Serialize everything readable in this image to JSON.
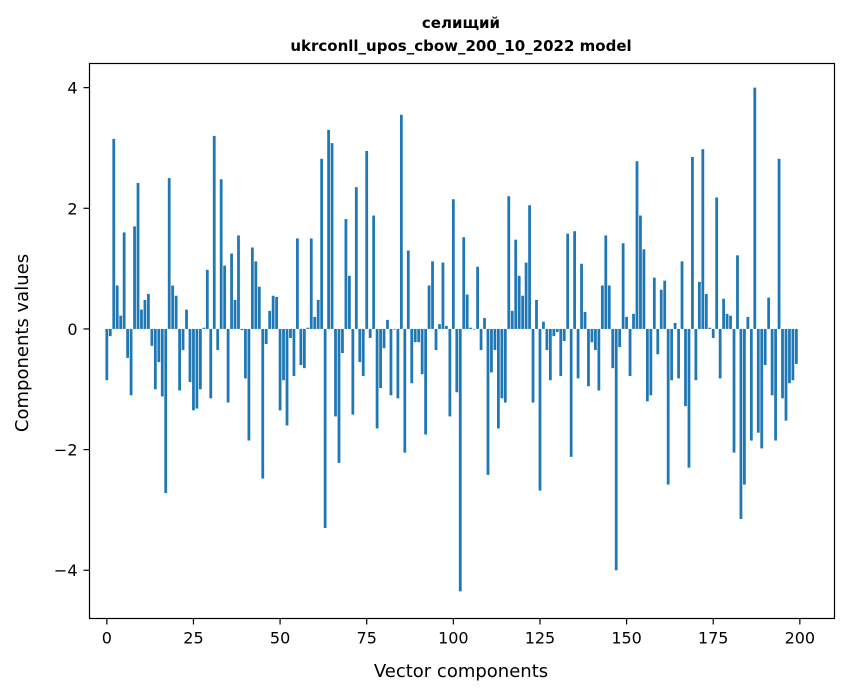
{
  "chart_data": {
    "type": "bar",
    "title_line1": "селищий",
    "title_line2": "ukrconll_upos_cbow_200_10_2022 model",
    "xlabel": "Vector components",
    "ylabel": "Components values",
    "xlim": [
      -5,
      210
    ],
    "ylim": [
      -4.8,
      4.4
    ],
    "xticks": [
      0,
      25,
      50,
      75,
      100,
      125,
      150,
      175,
      200
    ],
    "yticks": [
      -4,
      -2,
      0,
      2,
      4
    ],
    "ytick_labels": [
      "−4",
      "−2",
      "0",
      "2",
      "4"
    ],
    "bar_color": "#1f77b4",
    "grid": false,
    "values": [
      -0.85,
      -0.12,
      3.15,
      0.72,
      0.22,
      1.6,
      -0.48,
      -1.1,
      1.7,
      2.42,
      0.32,
      0.48,
      0.58,
      -0.28,
      -1.0,
      -0.55,
      -1.12,
      -2.72,
      2.5,
      0.72,
      0.55,
      -1.02,
      -0.35,
      0.32,
      -0.88,
      -1.35,
      -1.32,
      -1.0,
      0.02,
      0.98,
      -1.15,
      3.2,
      -0.35,
      2.48,
      1.05,
      -1.22,
      1.25,
      0.48,
      1.55,
      -0.02,
      -0.82,
      -1.85,
      1.35,
      1.12,
      0.7,
      -2.48,
      -0.25,
      0.3,
      0.55,
      0.53,
      -1.35,
      -0.85,
      -1.6,
      -0.15,
      -0.78,
      1.5,
      -0.6,
      -0.65,
      0.02,
      1.5,
      0.2,
      0.48,
      2.82,
      -3.3,
      3.3,
      3.08,
      -1.45,
      -2.22,
      -0.4,
      1.82,
      0.88,
      -1.42,
      2.35,
      -0.55,
      -0.78,
      2.95,
      -0.15,
      1.88,
      -1.65,
      -0.98,
      -0.32,
      0.15,
      -1.1,
      0.0,
      -1.15,
      3.55,
      -2.05,
      1.3,
      -0.9,
      -0.22,
      -0.22,
      -0.75,
      -1.75,
      0.72,
      1.12,
      -0.35,
      0.08,
      1.1,
      0.05,
      -1.45,
      2.15,
      -1.05,
      -4.35,
      1.52,
      0.57,
      0.02,
      0.0,
      1.03,
      -0.35,
      0.18,
      -2.42,
      -0.72,
      -0.35,
      -1.65,
      -1.15,
      -1.22,
      2.2,
      0.3,
      1.48,
      0.88,
      0.55,
      1.1,
      2.05,
      -1.22,
      0.48,
      -2.68,
      0.12,
      -0.35,
      -0.85,
      -0.12,
      -0.05,
      -0.78,
      -0.2,
      1.58,
      -2.12,
      1.62,
      -0.82,
      1.08,
      0.28,
      -0.95,
      -0.22,
      -0.35,
      -1.02,
      0.72,
      1.55,
      0.72,
      -0.65,
      -4.0,
      -0.3,
      1.42,
      0.2,
      -0.78,
      0.25,
      2.78,
      1.88,
      1.32,
      -1.2,
      -1.1,
      0.85,
      -0.42,
      0.65,
      0.8,
      -2.58,
      -0.85,
      0.1,
      -0.82,
      1.12,
      -1.28,
      -2.3,
      2.85,
      -0.85,
      0.78,
      2.98,
      0.58,
      0.02,
      -0.15,
      2.18,
      -0.82,
      0.5,
      0.25,
      0.22,
      -2.05,
      1.22,
      -3.15,
      -2.58,
      0.2,
      -1.85,
      4.0,
      -1.72,
      -1.98,
      -0.6,
      0.52,
      -1.1,
      -1.85,
      2.82,
      -1.15,
      -1.52,
      -0.9,
      -0.85,
      -0.58
    ]
  }
}
